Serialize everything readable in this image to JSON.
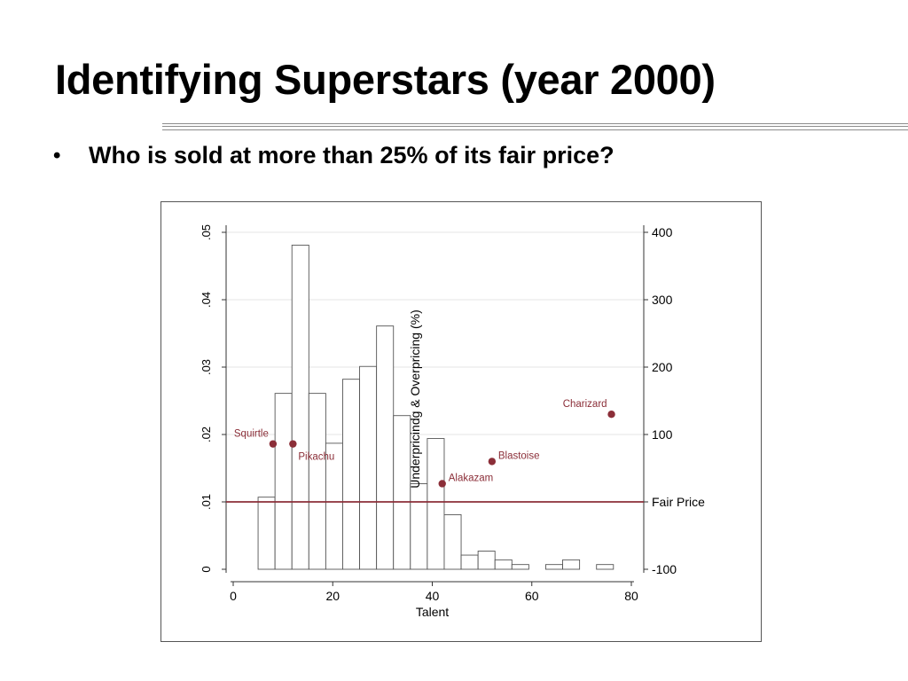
{
  "slide": {
    "title": "Identifying Superstars (year 2000)",
    "bullet_symbol": "•",
    "bullet_text": "Who is sold at more than 25% of its fair price?"
  },
  "chart_data": {
    "type": "bar",
    "subtype": "histogram with overlaid scatter",
    "title": "",
    "xlabel": "Talent",
    "ylabel_left": "",
    "ylabel_right": "Underpricindg & Overpricing (%)",
    "xlim": [
      0,
      80
    ],
    "x_ticks": [
      "0",
      "20",
      "40",
      "60",
      "80"
    ],
    "ylim_left": [
      0,
      0.05
    ],
    "y_ticks_left": [
      "0",
      ".01",
      ".02",
      ".03",
      ".04",
      ".05"
    ],
    "ylim_right": [
      -100,
      400
    ],
    "y_ticks_right": [
      "-100",
      "Fair Price",
      "100",
      "200",
      "300",
      "400"
    ],
    "grid": true,
    "histogram": {
      "bin_width": 3.4,
      "bins": [
        {
          "x_start": 5.0,
          "density": 0.0107
        },
        {
          "x_start": 8.4,
          "density": 0.0261
        },
        {
          "x_start": 11.8,
          "density": 0.0481
        },
        {
          "x_start": 15.2,
          "density": 0.0261
        },
        {
          "x_start": 18.6,
          "density": 0.0187
        },
        {
          "x_start": 22.0,
          "density": 0.0282
        },
        {
          "x_start": 25.4,
          "density": 0.0301
        },
        {
          "x_start": 28.8,
          "density": 0.0361
        },
        {
          "x_start": 32.2,
          "density": 0.0228
        },
        {
          "x_start": 35.6,
          "density": 0.0127
        },
        {
          "x_start": 39.0,
          "density": 0.0194
        },
        {
          "x_start": 42.4,
          "density": 0.0081
        },
        {
          "x_start": 45.8,
          "density": 0.0021
        },
        {
          "x_start": 49.2,
          "density": 0.0027
        },
        {
          "x_start": 52.6,
          "density": 0.0014
        },
        {
          "x_start": 56.0,
          "density": 0.0007
        },
        {
          "x_start": 59.4,
          "density": 0.0
        },
        {
          "x_start": 62.8,
          "density": 0.0007
        },
        {
          "x_start": 66.2,
          "density": 0.0014
        },
        {
          "x_start": 69.6,
          "density": 0.0
        },
        {
          "x_start": 73.0,
          "density": 0.0007
        }
      ]
    },
    "fair_price_line": {
      "y": 0,
      "label": "Fair Price"
    },
    "points": [
      {
        "name": "Squirtle",
        "x": 8,
        "y": 86,
        "label_pos": "left-above"
      },
      {
        "name": "Pikachu",
        "x": 12,
        "y": 86,
        "label_pos": "right-below"
      },
      {
        "name": "Alakazam",
        "x": 42,
        "y": 27,
        "label_pos": "right-above"
      },
      {
        "name": "Blastoise",
        "x": 52,
        "y": 60,
        "label_pos": "right-above"
      },
      {
        "name": "Charizard",
        "x": 76,
        "y": 130,
        "label_pos": "left-above"
      }
    ],
    "colors": {
      "points": "#8b2e38",
      "fair_line": "#8b2e38",
      "bars_stroke": "#555555",
      "grid": "#e4e4e4",
      "labels": "#8b2e38"
    }
  }
}
